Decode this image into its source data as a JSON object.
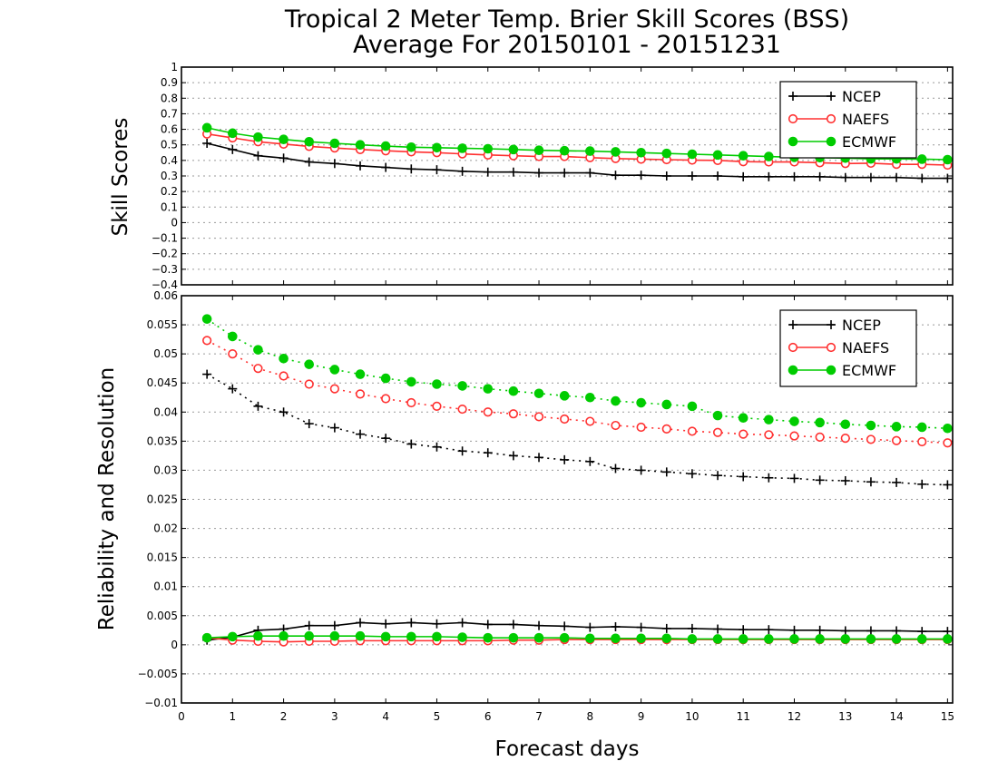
{
  "chart_data": {
    "title_line1": "Tropical 2 Meter Temp. Brier Skill Scores (BSS)",
    "title_line2": "Average For 20150101 - 20151231",
    "xlabel": "Forecast days",
    "xlim": [
      0,
      15.1
    ],
    "xticks": [
      "0",
      "1",
      "2",
      "3",
      "4",
      "5",
      "6",
      "7",
      "8",
      "9",
      "10",
      "11",
      "12",
      "13",
      "14",
      "15"
    ],
    "x": [
      0.5,
      1,
      1.5,
      2,
      2.5,
      3,
      3.5,
      4,
      4.5,
      5,
      5.5,
      6,
      6.5,
      7,
      7.5,
      8,
      8.5,
      9,
      9.5,
      10,
      10.5,
      11,
      11.5,
      12,
      12.5,
      13,
      13.5,
      14,
      14.5,
      15
    ],
    "colors": {
      "NCEP": "#000000",
      "NAEFS": "#ff3030",
      "ECMWF": "#00cc00"
    },
    "panels": [
      {
        "type": "line",
        "ylabel": "Skill Scores",
        "ylim": [
          -0.4,
          1.0
        ],
        "yticks": [
          "−0.4",
          "−0.3",
          "−0.2",
          "−0.1",
          "0",
          "0.1",
          "0.2",
          "0.3",
          "0.4",
          "0.5",
          "0.6",
          "0.7",
          "0.8",
          "0.9",
          "1"
        ],
        "grid": true,
        "legend_position": "top-right",
        "series": [
          {
            "name": "NCEP",
            "marker": "plus",
            "style": "solid",
            "values": [
              0.51,
              0.47,
              0.43,
              0.415,
              0.39,
              0.38,
              0.365,
              0.355,
              0.345,
              0.34,
              0.33,
              0.325,
              0.325,
              0.32,
              0.32,
              0.32,
              0.305,
              0.305,
              0.3,
              0.3,
              0.3,
              0.295,
              0.295,
              0.295,
              0.295,
              0.29,
              0.29,
              0.29,
              0.285,
              0.285
            ]
          },
          {
            "name": "NAEFS",
            "marker": "open-circle",
            "style": "solid",
            "values": [
              0.57,
              0.545,
              0.52,
              0.505,
              0.49,
              0.48,
              0.47,
              0.462,
              0.455,
              0.45,
              0.442,
              0.435,
              0.43,
              0.425,
              0.425,
              0.418,
              0.412,
              0.408,
              0.405,
              0.402,
              0.4,
              0.392,
              0.39,
              0.39,
              0.385,
              0.38,
              0.382,
              0.375,
              0.375,
              0.37
            ]
          },
          {
            "name": "ECMWF",
            "marker": "filled-circle",
            "style": "solid",
            "values": [
              0.61,
              0.575,
              0.55,
              0.535,
              0.52,
              0.51,
              0.5,
              0.492,
              0.485,
              0.482,
              0.478,
              0.475,
              0.47,
              0.465,
              0.462,
              0.46,
              0.455,
              0.45,
              0.445,
              0.44,
              0.435,
              0.43,
              0.425,
              0.42,
              0.418,
              0.415,
              0.41,
              0.41,
              0.408,
              0.405
            ]
          }
        ]
      },
      {
        "type": "line",
        "ylabel": "Reliability and Resolution",
        "ylim": [
          -0.01,
          0.06
        ],
        "yticks": [
          "−0.01",
          "−0.005",
          "0",
          "0.005",
          "0.01",
          "0.015",
          "0.02",
          "0.025",
          "0.03",
          "0.035",
          "0.04",
          "0.045",
          "0.05",
          "0.055",
          "0.06"
        ],
        "grid": true,
        "legend_position": "top-right",
        "series": [
          {
            "name": "NCEP",
            "marker": "plus",
            "style": "solid",
            "values": [
              0.0008,
              0.0013,
              0.0025,
              0.0027,
              0.0033,
              0.0033,
              0.0038,
              0.0036,
              0.0038,
              0.0036,
              0.0038,
              0.0035,
              0.0035,
              0.0033,
              0.0032,
              0.003,
              0.0031,
              0.003,
              0.0028,
              0.0028,
              0.0027,
              0.0026,
              0.0026,
              0.0025,
              0.0025,
              0.0024,
              0.0024,
              0.0024,
              0.0023,
              0.0023
            ]
          },
          {
            "name": "NAEFS",
            "marker": "open-circle",
            "style": "solid",
            "values": [
              0.0012,
              0.0008,
              0.0006,
              0.0005,
              0.0006,
              0.0006,
              0.0007,
              0.0007,
              0.0007,
              0.0007,
              0.0007,
              0.0007,
              0.0008,
              0.0008,
              0.0009,
              0.0009,
              0.0009,
              0.0009,
              0.0009,
              0.0009,
              0.0009,
              0.0009,
              0.0009,
              0.0009,
              0.0009,
              0.0009,
              0.0009,
              0.0009,
              0.0009,
              0.0009
            ]
          },
          {
            "name": "ECMWF",
            "marker": "filled-circle",
            "style": "solid",
            "values": [
              0.0012,
              0.0014,
              0.0015,
              0.0015,
              0.0015,
              0.0015,
              0.0015,
              0.0014,
              0.0014,
              0.0014,
              0.0013,
              0.0012,
              0.0012,
              0.0012,
              0.0012,
              0.0011,
              0.0011,
              0.0011,
              0.0011,
              0.001,
              0.001,
              0.001,
              0.001,
              0.001,
              0.001,
              0.001,
              0.001,
              0.001,
              0.001,
              0.001
            ]
          },
          {
            "name": "NCEP",
            "marker": "plus",
            "style": "dotted",
            "values": [
              0.0465,
              0.044,
              0.041,
              0.04,
              0.038,
              0.0373,
              0.0362,
              0.0355,
              0.0345,
              0.034,
              0.0333,
              0.033,
              0.0325,
              0.0322,
              0.0318,
              0.0315,
              0.0303,
              0.03,
              0.0297,
              0.0294,
              0.0291,
              0.0289,
              0.0287,
              0.0286,
              0.0283,
              0.0282,
              0.028,
              0.0279,
              0.0276,
              0.0275
            ]
          },
          {
            "name": "NAEFS",
            "marker": "open-circle",
            "style": "dotted",
            "values": [
              0.0523,
              0.05,
              0.0475,
              0.0462,
              0.0448,
              0.044,
              0.0431,
              0.0423,
              0.0416,
              0.041,
              0.0405,
              0.04,
              0.0397,
              0.0392,
              0.0388,
              0.0384,
              0.0377,
              0.0374,
              0.0371,
              0.0367,
              0.0365,
              0.0362,
              0.0361,
              0.0359,
              0.0357,
              0.0355,
              0.0353,
              0.0351,
              0.0349,
              0.0347
            ]
          },
          {
            "name": "ECMWF",
            "marker": "filled-circle",
            "style": "dotted",
            "values": [
              0.056,
              0.053,
              0.0507,
              0.0492,
              0.0482,
              0.0473,
              0.0465,
              0.0458,
              0.0452,
              0.0448,
              0.0445,
              0.044,
              0.0436,
              0.0432,
              0.0428,
              0.0425,
              0.0419,
              0.0416,
              0.0413,
              0.041,
              0.0394,
              0.039,
              0.0387,
              0.0384,
              0.0382,
              0.0379,
              0.0377,
              0.0375,
              0.0374,
              0.0372
            ]
          }
        ]
      }
    ],
    "legend": [
      {
        "name": "NCEP",
        "marker": "plus"
      },
      {
        "name": "NAEFS",
        "marker": "open-circle"
      },
      {
        "name": "ECMWF",
        "marker": "filled-circle"
      }
    ]
  }
}
